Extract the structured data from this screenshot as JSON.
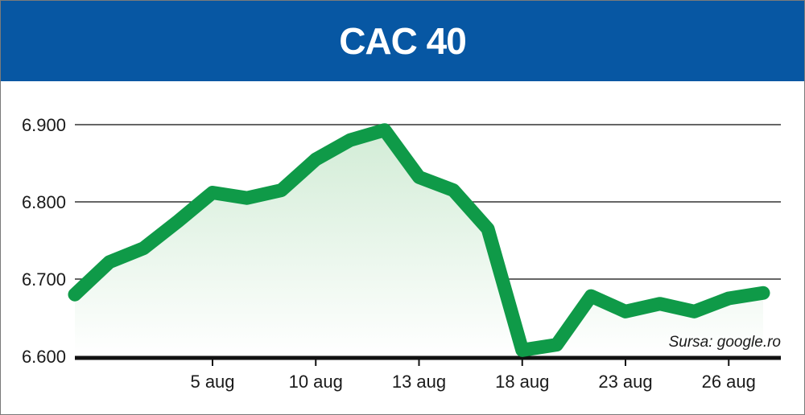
{
  "chart_data": {
    "type": "line",
    "title": "CAC 40",
    "source": "Sursa: google.ro",
    "ylim": [
      6600,
      6900
    ],
    "yticks": [
      6600,
      6700,
      6800,
      6900
    ],
    "ytick_labels": [
      "6.600",
      "6.700",
      "6.800",
      "6.900"
    ],
    "xtick_labels": [
      {
        "label": "5 aug",
        "index": 4
      },
      {
        "label": "10 aug",
        "index": 7
      },
      {
        "label": "13 aug",
        "index": 10
      },
      {
        "label": "18 aug",
        "index": 13
      },
      {
        "label": "23 aug",
        "index": 16
      },
      {
        "label": "26 aug",
        "index": 19
      }
    ],
    "grid": true,
    "colors": {
      "line": "#0f9a48",
      "header": "#0757a3",
      "fill_top": "#d2ecd6"
    },
    "series": [
      {
        "values": [
          6680,
          6722,
          6740,
          6775,
          6812,
          6805,
          6815,
          6855,
          6880,
          6893,
          6832,
          6815,
          6765,
          6608,
          6615,
          6678,
          6658,
          6668,
          6658,
          6675,
          6682
        ]
      }
    ]
  }
}
